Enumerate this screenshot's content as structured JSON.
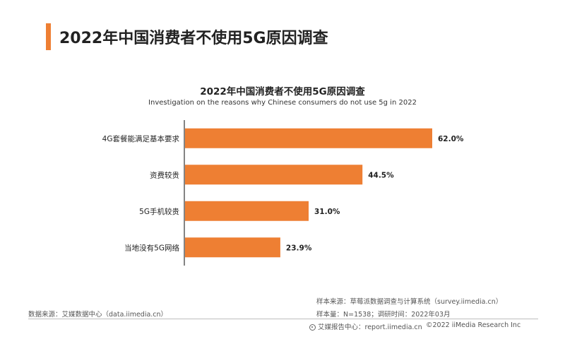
{
  "header": {
    "title": "2022年中国消费者不使用5G原因调查"
  },
  "chart_data": {
    "type": "bar",
    "orientation": "horizontal",
    "title": "2022年中国消费者不使用5G原因调查",
    "subtitle": "Investigation on the reasons why Chinese consumers do not use 5g in 2022",
    "categories": [
      "4G套餐能满足基本要求",
      "资费较贵",
      "5G手机较贵",
      "当地没有5G网络"
    ],
    "values": [
      62.0,
      44.5,
      31.0,
      23.9
    ],
    "value_labels": [
      "62.0%",
      "44.5%",
      "31.0%",
      "23.9%"
    ],
    "unit": "%",
    "xlim": [
      0,
      62.0
    ],
    "bar_color": "#ee7f33",
    "grid": false,
    "legend": "none"
  },
  "footer": {
    "data_source": "数据来源：艾媒数据中心（data.iimedia.cn）",
    "sample_source": "样本来源：草莓派数据调查与计算系统（survey.iimedia.cn）",
    "sample_info": "样本量：N=1538；调研时间：2022年03月",
    "report_center": "艾媒报告中心：report.iimedia.cn",
    "copyright": "©2022  iiMedia Research  Inc"
  }
}
